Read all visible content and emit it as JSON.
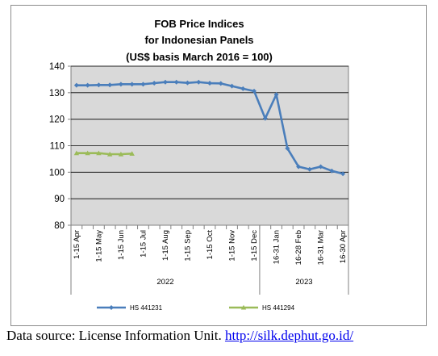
{
  "chart_data": {
    "type": "line",
    "title_lines": [
      "FOB Price Indices",
      "for Indonesian Panels",
      "(US$ basis March 2016 = 100)"
    ],
    "categories": [
      "1-15 Apr",
      "",
      "1-15 May",
      "",
      "1-15 Jun",
      "",
      "1-15 Jul",
      "",
      "1-15 Aug",
      "",
      "1-15 Sep",
      "",
      "1-15 Oct",
      "",
      "1-15 Nov",
      "",
      "1-15 Dec",
      "",
      "16-31 Jan",
      "",
      "16-28 Feb",
      "",
      "16-31 Mar",
      "",
      "16-30 Apr"
    ],
    "year_groups": [
      {
        "label": "2022",
        "start": 0,
        "end": 16
      },
      {
        "label": "2023",
        "start": 17,
        "end": 24
      }
    ],
    "series": [
      {
        "name": "HS 441231",
        "color": "#4a7ebb",
        "marker": "diamond",
        "values": [
          132.8,
          132.8,
          132.9,
          132.9,
          133.2,
          133.2,
          133.2,
          133.6,
          134.0,
          134.0,
          133.7,
          134.0,
          133.6,
          133.5,
          132.5,
          131.5,
          130.6,
          120.3,
          129.3,
          109.0,
          102.1,
          101.1,
          102.1,
          100.5,
          99.4
        ]
      },
      {
        "name": "HS 441294",
        "color": "#9bbb59",
        "marker": "triangle",
        "values": [
          107.2,
          107.2,
          107.2,
          106.8,
          106.8,
          107.0,
          null,
          null,
          null,
          null,
          null,
          null,
          null,
          null,
          null,
          null,
          null,
          null,
          null,
          null,
          null,
          null,
          null,
          null,
          null
        ]
      }
    ],
    "ylim": [
      80,
      140
    ],
    "yticks": [
      80,
      90,
      100,
      110,
      120,
      130,
      140
    ],
    "grid": true,
    "legend_position": "bottom",
    "colors": {
      "plot_background": "#d9d9d9",
      "gridline": "#000000"
    }
  },
  "source": {
    "prefix": "Data source: License Information Unit. ",
    "link": "http://silk.dephut.go.id/"
  }
}
